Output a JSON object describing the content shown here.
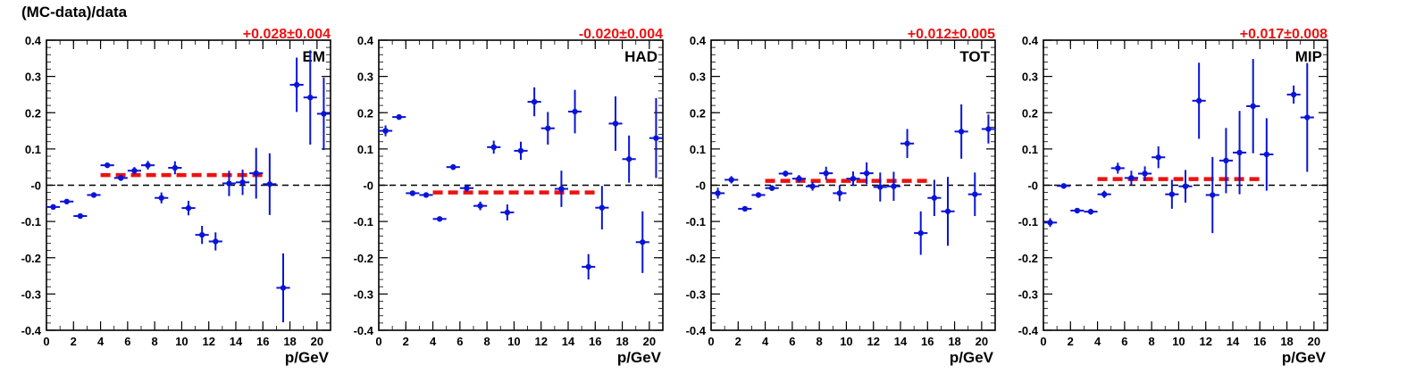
{
  "figure": {
    "ylabel": "(MC-data)/data",
    "xlabel": "p/GeV"
  },
  "colors": {
    "points": "#0a14d6",
    "fit": "#ee1111",
    "zero": "#000000",
    "annotation": "#ee1111"
  },
  "chart_data": [
    {
      "type": "scatter",
      "label": "EM",
      "annotation": "+0.028±0.004",
      "xlim": [
        0,
        21
      ],
      "ylim": [
        -0.4,
        0.4
      ],
      "xticks": [
        "0",
        "2",
        "4",
        "6",
        "8",
        "10",
        "12",
        "14",
        "16",
        "18",
        "20"
      ],
      "yticks": [
        "-0.4",
        "-0.3",
        "-0.2",
        "-0.1",
        "-0",
        "0.1",
        "0.2",
        "0.3",
        "0.4"
      ],
      "fit": {
        "value": 0.028,
        "xrange": [
          4,
          16
        ]
      },
      "points": [
        {
          "x": 0.5,
          "y": -0.06,
          "err": 0.005
        },
        {
          "x": 1.5,
          "y": -0.045,
          "err": 0.005
        },
        {
          "x": 2.5,
          "y": -0.085,
          "err": 0.005
        },
        {
          "x": 3.5,
          "y": -0.027,
          "err": 0.005
        },
        {
          "x": 4.5,
          "y": 0.055,
          "err": 0.005
        },
        {
          "x": 5.5,
          "y": 0.02,
          "err": 0.008
        },
        {
          "x": 6.5,
          "y": 0.04,
          "err": 0.01
        },
        {
          "x": 7.5,
          "y": 0.055,
          "err": 0.012
        },
        {
          "x": 8.5,
          "y": -0.035,
          "err": 0.015
        },
        {
          "x": 9.5,
          "y": 0.048,
          "err": 0.018
        },
        {
          "x": 10.5,
          "y": -0.063,
          "err": 0.02
        },
        {
          "x": 11.5,
          "y": -0.137,
          "err": 0.025
        },
        {
          "x": 12.5,
          "y": -0.155,
          "err": 0.025
        },
        {
          "x": 13.5,
          "y": 0.005,
          "err": 0.035
        },
        {
          "x": 14.5,
          "y": 0.008,
          "err": 0.035
        },
        {
          "x": 15.5,
          "y": 0.033,
          "err": 0.07
        },
        {
          "x": 16.5,
          "y": 0.003,
          "err": 0.085
        },
        {
          "x": 17.5,
          "y": -0.283,
          "err": 0.095
        },
        {
          "x": 18.5,
          "y": 0.277,
          "err": 0.075
        },
        {
          "x": 19.5,
          "y": 0.242,
          "err": 0.13
        },
        {
          "x": 20.5,
          "y": 0.197,
          "err": 0.1
        }
      ]
    },
    {
      "type": "scatter",
      "label": "HAD",
      "annotation": "-0.020±0.004",
      "xlim": [
        0,
        21
      ],
      "ylim": [
        -0.4,
        0.4
      ],
      "xticks": [
        "0",
        "2",
        "4",
        "6",
        "8",
        "10",
        "12",
        "14",
        "16",
        "18",
        "20"
      ],
      "yticks": [
        "-0.4",
        "-0.3",
        "-0.2",
        "-0.1",
        "-0",
        "0.1",
        "0.2",
        "0.3",
        "0.4"
      ],
      "fit": {
        "value": -0.02,
        "xrange": [
          4,
          16
        ]
      },
      "points": [
        {
          "x": 0.5,
          "y": 0.15,
          "err": 0.015
        },
        {
          "x": 1.5,
          "y": 0.188,
          "err": 0.005
        },
        {
          "x": 2.5,
          "y": -0.022,
          "err": 0.005
        },
        {
          "x": 3.5,
          "y": -0.027,
          "err": 0.005
        },
        {
          "x": 4.5,
          "y": -0.093,
          "err": 0.005
        },
        {
          "x": 5.5,
          "y": 0.05,
          "err": 0.008
        },
        {
          "x": 6.5,
          "y": -0.008,
          "err": 0.01
        },
        {
          "x": 7.5,
          "y": -0.057,
          "err": 0.012
        },
        {
          "x": 8.5,
          "y": 0.105,
          "err": 0.018
        },
        {
          "x": 9.5,
          "y": -0.075,
          "err": 0.022
        },
        {
          "x": 10.5,
          "y": 0.095,
          "err": 0.025
        },
        {
          "x": 11.5,
          "y": 0.23,
          "err": 0.04
        },
        {
          "x": 12.5,
          "y": 0.157,
          "err": 0.045
        },
        {
          "x": 13.5,
          "y": -0.01,
          "err": 0.05
        },
        {
          "x": 14.5,
          "y": 0.203,
          "err": 0.06
        },
        {
          "x": 15.5,
          "y": -0.225,
          "err": 0.035
        },
        {
          "x": 16.5,
          "y": -0.062,
          "err": 0.06
        },
        {
          "x": 17.5,
          "y": 0.17,
          "err": 0.075
        },
        {
          "x": 18.5,
          "y": 0.072,
          "err": 0.065
        },
        {
          "x": 19.5,
          "y": -0.157,
          "err": 0.085
        },
        {
          "x": 20.5,
          "y": 0.13,
          "err": 0.11
        }
      ]
    },
    {
      "type": "scatter",
      "label": "TOT",
      "annotation": "+0.012±0.005",
      "xlim": [
        0,
        21
      ],
      "ylim": [
        -0.4,
        0.4
      ],
      "xticks": [
        "0",
        "2",
        "4",
        "6",
        "8",
        "10",
        "12",
        "14",
        "16",
        "18",
        "20"
      ],
      "yticks": [
        "-0.4",
        "-0.3",
        "-0.2",
        "-0.1",
        "-0",
        "0.1",
        "0.2",
        "0.3",
        "0.4"
      ],
      "fit": {
        "value": 0.012,
        "xrange": [
          4,
          16
        ]
      },
      "points": [
        {
          "x": 0.5,
          "y": -0.022,
          "err": 0.015
        },
        {
          "x": 1.5,
          "y": 0.015,
          "err": 0.01
        },
        {
          "x": 2.5,
          "y": -0.065,
          "err": 0.005
        },
        {
          "x": 3.5,
          "y": -0.027,
          "err": 0.005
        },
        {
          "x": 4.5,
          "y": -0.008,
          "err": 0.005
        },
        {
          "x": 5.5,
          "y": 0.032,
          "err": 0.008
        },
        {
          "x": 6.5,
          "y": 0.018,
          "err": 0.01
        },
        {
          "x": 7.5,
          "y": -0.003,
          "err": 0.012
        },
        {
          "x": 8.5,
          "y": 0.033,
          "err": 0.018
        },
        {
          "x": 9.5,
          "y": -0.022,
          "err": 0.022
        },
        {
          "x": 10.5,
          "y": 0.018,
          "err": 0.02
        },
        {
          "x": 11.5,
          "y": 0.033,
          "err": 0.03
        },
        {
          "x": 12.5,
          "y": -0.005,
          "err": 0.04
        },
        {
          "x": 13.5,
          "y": -0.003,
          "err": 0.04
        },
        {
          "x": 14.5,
          "y": 0.115,
          "err": 0.04
        },
        {
          "x": 15.5,
          "y": -0.132,
          "err": 0.06
        },
        {
          "x": 16.5,
          "y": -0.035,
          "err": 0.05
        },
        {
          "x": 17.5,
          "y": -0.072,
          "err": 0.095
        },
        {
          "x": 18.5,
          "y": 0.148,
          "err": 0.075
        },
        {
          "x": 19.5,
          "y": -0.025,
          "err": 0.06
        },
        {
          "x": 20.5,
          "y": 0.155,
          "err": 0.04
        }
      ]
    },
    {
      "type": "scatter",
      "label": "MIP",
      "annotation": "+0.017±0.008",
      "xlim": [
        0,
        21
      ],
      "ylim": [
        -0.4,
        0.4
      ],
      "xticks": [
        "0",
        "2",
        "4",
        "6",
        "8",
        "10",
        "12",
        "14",
        "16",
        "18",
        "20"
      ],
      "yticks": [
        "-0.4",
        "-0.3",
        "-0.2",
        "-0.1",
        "-0",
        "0.1",
        "0.2",
        "0.3",
        "0.4"
      ],
      "fit": {
        "value": 0.017,
        "xrange": [
          4,
          16
        ]
      },
      "points": [
        {
          "x": 0.5,
          "y": -0.103,
          "err": 0.012
        },
        {
          "x": 1.5,
          "y": -0.002,
          "err": 0.005
        },
        {
          "x": 2.5,
          "y": -0.07,
          "err": 0.005
        },
        {
          "x": 3.5,
          "y": -0.073,
          "err": 0.008
        },
        {
          "x": 4.5,
          "y": -0.025,
          "err": 0.01
        },
        {
          "x": 5.5,
          "y": 0.047,
          "err": 0.015
        },
        {
          "x": 6.5,
          "y": 0.02,
          "err": 0.02
        },
        {
          "x": 7.5,
          "y": 0.032,
          "err": 0.02
        },
        {
          "x": 8.5,
          "y": 0.077,
          "err": 0.03
        },
        {
          "x": 9.5,
          "y": -0.025,
          "err": 0.04
        },
        {
          "x": 10.5,
          "y": -0.003,
          "err": 0.045
        },
        {
          "x": 11.5,
          "y": 0.233,
          "err": 0.105
        },
        {
          "x": 12.5,
          "y": -0.027,
          "err": 0.105
        },
        {
          "x": 13.5,
          "y": 0.068,
          "err": 0.09
        },
        {
          "x": 14.5,
          "y": 0.09,
          "err": 0.115
        },
        {
          "x": 15.5,
          "y": 0.218,
          "err": 0.13
        },
        {
          "x": 16.5,
          "y": 0.085,
          "err": 0.1
        },
        {
          "x": 18.5,
          "y": 0.25,
          "err": 0.025
        },
        {
          "x": 19.5,
          "y": 0.187,
          "err": 0.15
        }
      ]
    }
  ]
}
